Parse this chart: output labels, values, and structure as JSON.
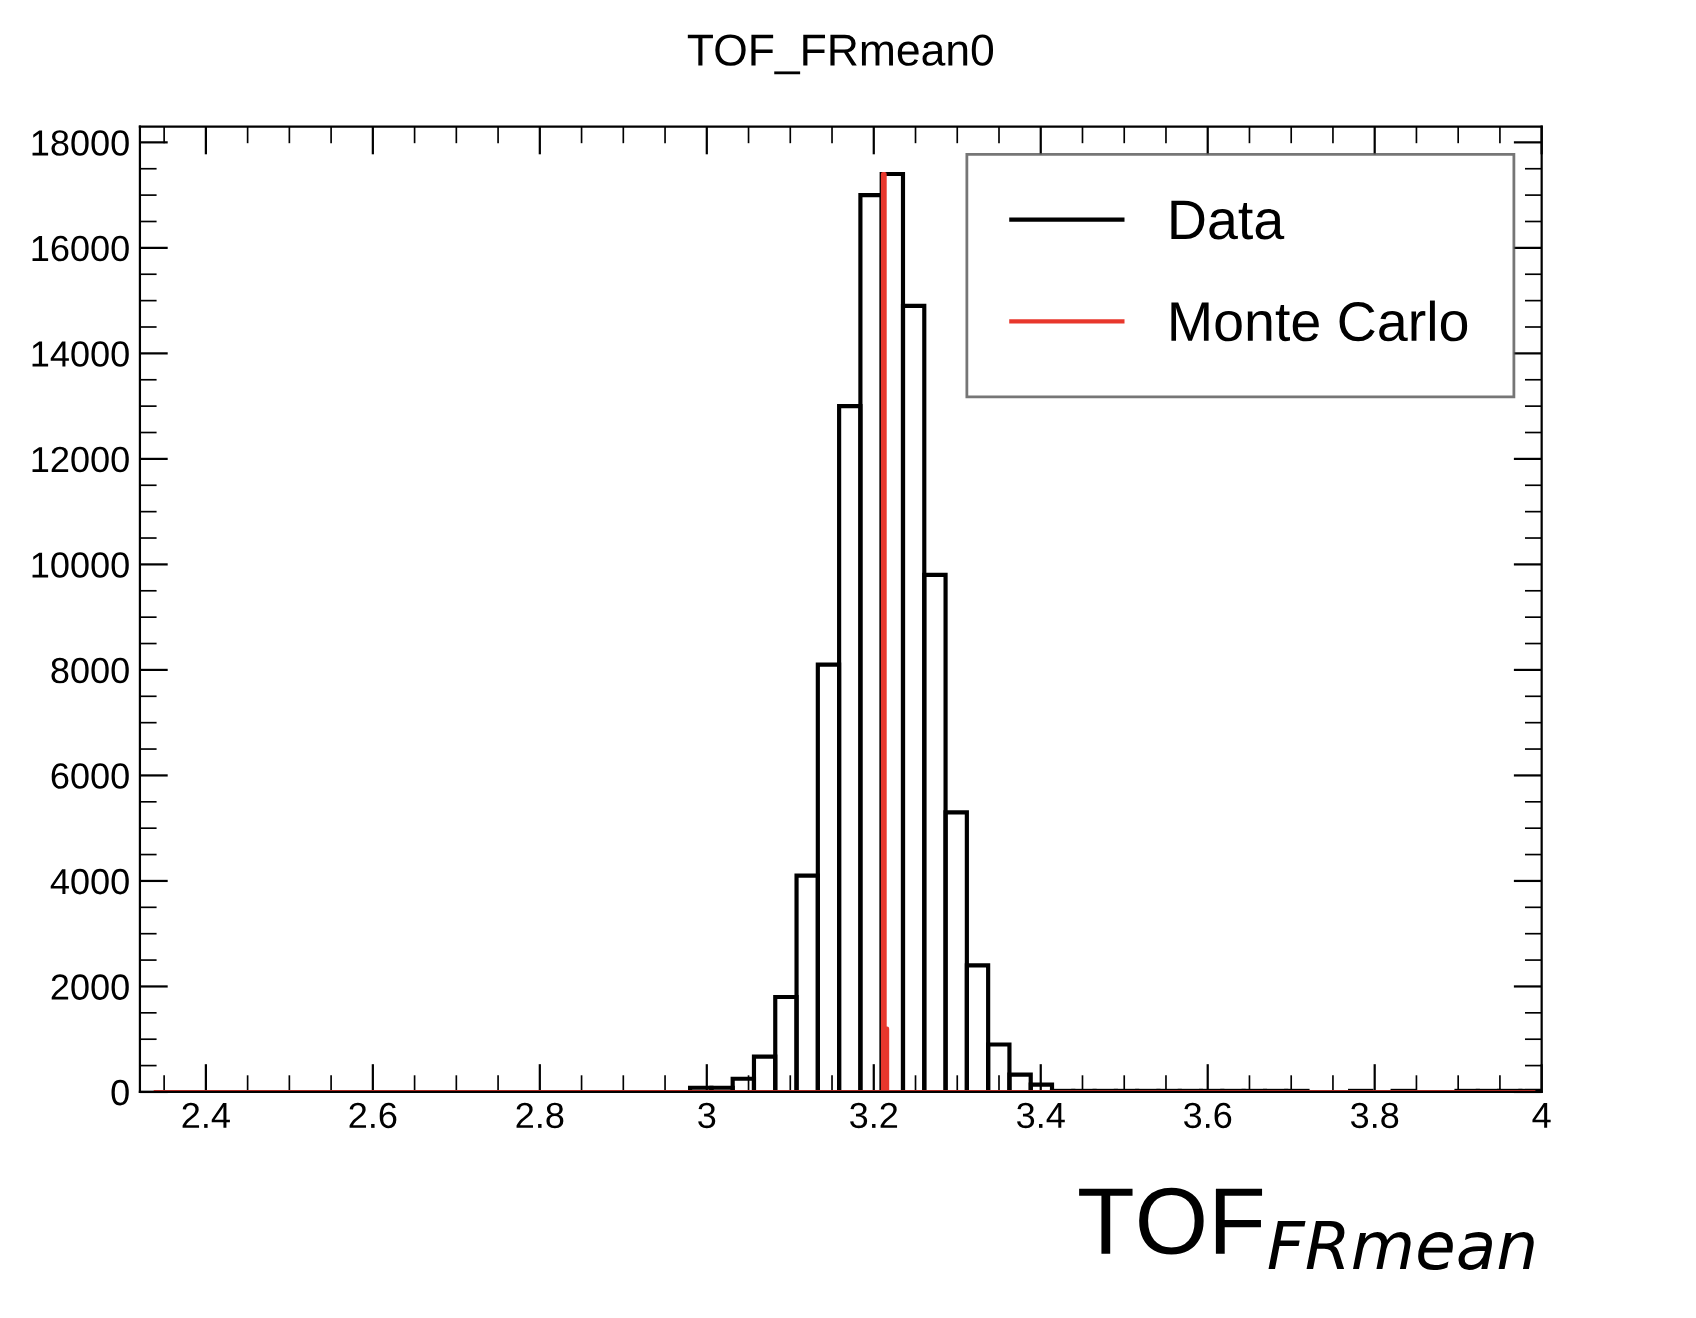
{
  "chart_data": {
    "type": "histogram",
    "title": "TOF_FRmean0",
    "xlabel": "TOF$_{FRmean}$",
    "bins": [
      2.98,
      3.0055,
      3.031,
      3.0565,
      3.082,
      3.1075,
      3.133,
      3.1585,
      3.184,
      3.2095,
      3.235,
      3.2605,
      3.286,
      3.3115,
      3.337,
      3.3625,
      3.388,
      3.4135,
      3.439,
      3.4645,
      3.49,
      3.5155,
      3.541,
      3.5665,
      3.592,
      3.6175,
      3.643,
      3.6685,
      3.694,
      3.7195,
      3.745,
      3.7705,
      3.796,
      3.8215,
      3.847,
      3.8725,
      3.898,
      3.9235,
      3.949,
      3.9745,
      4.0
    ],
    "series": [
      {
        "name": "Data",
        "color": "#000000",
        "values": [
          80,
          80,
          250,
          670,
          1800,
          4100,
          8100,
          13000,
          17000,
          17400,
          14900,
          9800,
          5300,
          2400,
          900,
          330,
          140,
          20,
          20,
          20,
          20,
          20,
          20,
          20,
          20,
          20,
          20,
          20,
          20,
          0,
          0,
          20,
          0,
          20,
          0,
          0,
          20,
          20,
          20,
          20
        ]
      },
      {
        "name": "Monte Carlo",
        "type": "line",
        "color": "#e8372c",
        "x": [
          2.34,
          3.211,
          3.211,
          3.213,
          3.213,
          3.216,
          3.216,
          3.99
        ],
        "values": [
          0,
          0,
          17400,
          17400,
          1200,
          1200,
          0,
          0
        ]
      }
    ],
    "xlim": [
      2.321,
      4.0
    ],
    "xticks": [
      2.4,
      2.6,
      2.8,
      3,
      3.2,
      3.4,
      3.6,
      3.8,
      4
    ],
    "ylim": [
      0,
      18300
    ],
    "yticks": [
      0,
      2000,
      4000,
      6000,
      8000,
      10000,
      12000,
      14000,
      16000,
      18000
    ],
    "grid": false,
    "legend": "top right"
  }
}
